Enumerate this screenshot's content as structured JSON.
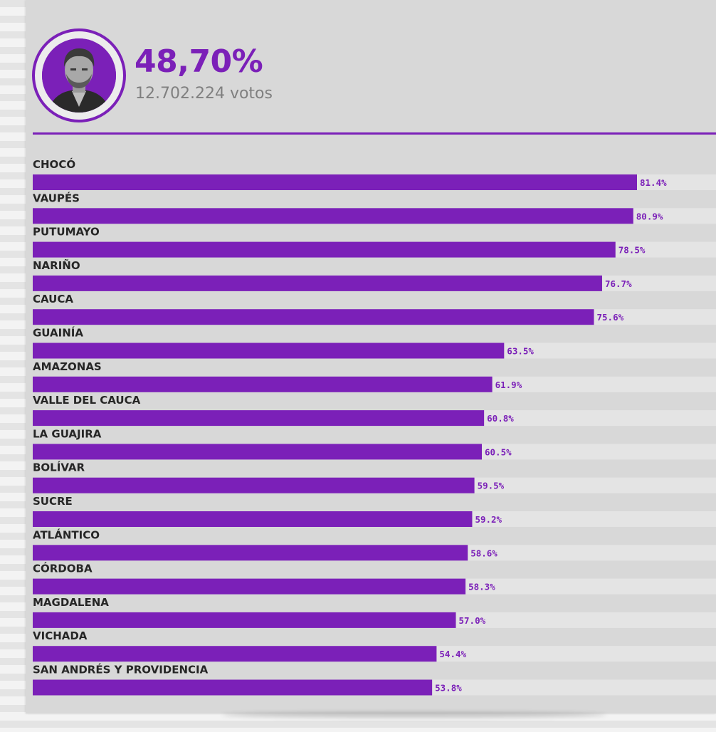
{
  "header": {
    "percentage": "48,70%",
    "votes": "12.702.224 votos",
    "avatar_icon": "candidate-portrait-icon"
  },
  "colors": {
    "accent": "#7b20b8",
    "track": "#e4e4e4",
    "panel": "#d8d8d8",
    "label_text": "#262626"
  },
  "chart_data": {
    "type": "bar",
    "orientation": "horizontal",
    "categories": [
      "CHOCÓ",
      "VAUPÉS",
      "PUTUMAYO",
      "NARIÑO",
      "CAUCA",
      "GUAINÍA",
      "AMAZONAS",
      "VALLE DEL CAUCA",
      "LA GUAJIRA",
      "BOLÍVAR",
      "SUCRE",
      "ATLÁNTICO",
      "CÓRDOBA",
      "MAGDALENA",
      "VICHADA",
      "SAN ANDRÉS Y PROVIDENCIA"
    ],
    "values": [
      81.4,
      80.9,
      78.5,
      76.7,
      75.6,
      63.5,
      61.9,
      60.8,
      60.5,
      59.5,
      59.2,
      58.6,
      58.3,
      57.0,
      54.4,
      53.8
    ],
    "value_labels": [
      "81.4%",
      "80.9%",
      "78.5%",
      "76.7%",
      "75.6%",
      "63.5%",
      "61.9%",
      "60.8%",
      "60.5%",
      "59.5%",
      "59.2%",
      "58.6%",
      "58.3%",
      "57.0%",
      "54.4%",
      "53.8%"
    ],
    "unit": "%",
    "xlim": [
      0,
      100
    ],
    "grid": false,
    "legend": "none"
  }
}
